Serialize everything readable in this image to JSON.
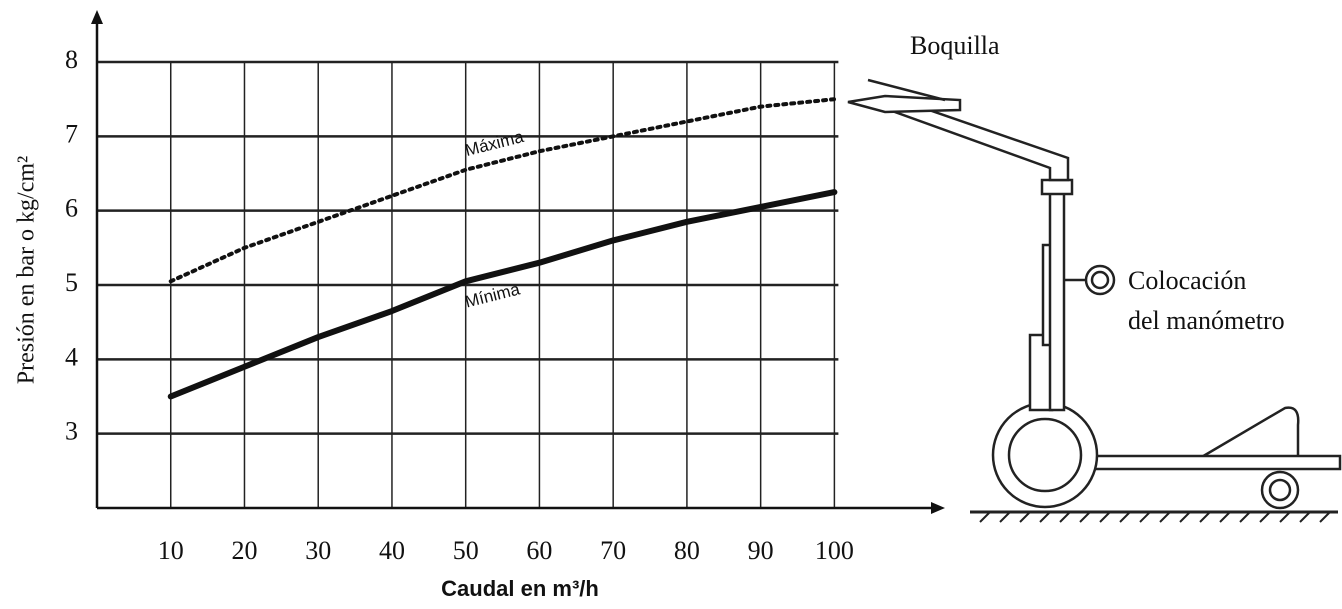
{
  "chart_data": {
    "type": "line",
    "y_label": "Presión en bar o kg/cm²",
    "x_label": "Caudal en m³/h",
    "xlim": [
      0,
      115
    ],
    "ylim": [
      2,
      8.7
    ],
    "xticks": [
      10,
      20,
      30,
      40,
      50,
      60,
      70,
      80,
      90,
      100
    ],
    "yticks": [
      3,
      4,
      5,
      6,
      7,
      8
    ],
    "grid": true,
    "x": [
      10,
      20,
      30,
      40,
      50,
      60,
      70,
      80,
      90,
      100
    ],
    "series": [
      {
        "name": "Máxima",
        "color": "#111111",
        "style": "dotted",
        "values": [
          5.05,
          5.5,
          5.85,
          6.2,
          6.55,
          6.8,
          7.0,
          7.2,
          7.4,
          7.5
        ]
      },
      {
        "name": "Mínima",
        "color": "#111111",
        "style": "solid",
        "values": [
          3.5,
          3.9,
          4.3,
          4.65,
          5.05,
          5.3,
          5.6,
          5.85,
          6.05,
          6.25
        ]
      }
    ],
    "annotations": [
      "Boquilla",
      "Colocación",
      "del manómetro"
    ]
  }
}
